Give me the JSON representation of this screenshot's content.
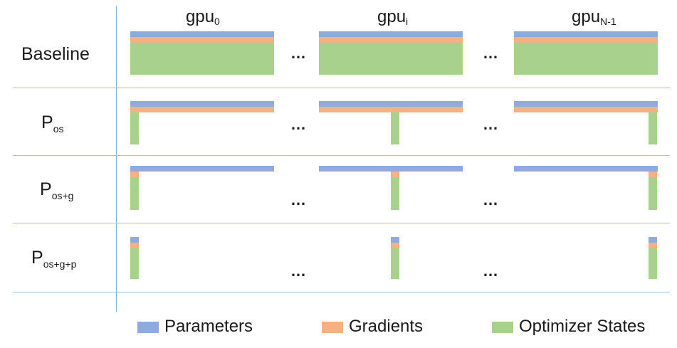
{
  "columns": [
    {
      "base": "gpu",
      "sub": "0"
    },
    {
      "base": "gpu",
      "sub": "i"
    },
    {
      "base": "gpu",
      "sub": "N-1"
    }
  ],
  "rows": [
    {
      "base": "Baseline",
      "sub": ""
    },
    {
      "base": "P",
      "sub": "os"
    },
    {
      "base": "P",
      "sub": "os+g"
    },
    {
      "base": "P",
      "sub": "os+g+p"
    }
  ],
  "ellipsis": "…",
  "legend": [
    {
      "label": "Parameters",
      "color": "#8faadc"
    },
    {
      "label": "Gradients",
      "color": "#f4b183"
    },
    {
      "label": "Optimizer States",
      "color": "#a9d18e"
    }
  ],
  "colors": {
    "parameters": "#8faadc",
    "gradients": "#f4b183",
    "optimizer_states": "#a9d18e"
  }
}
